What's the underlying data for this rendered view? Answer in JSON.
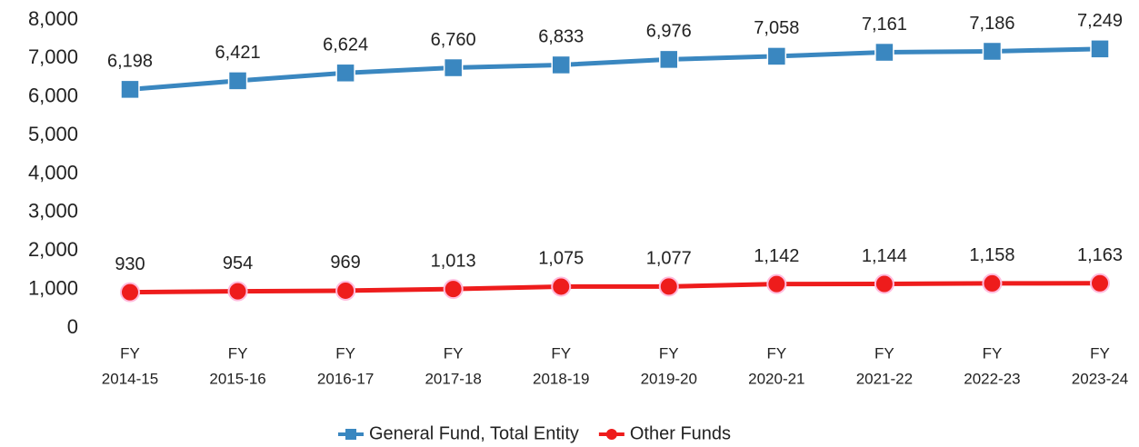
{
  "chart_data": {
    "type": "line",
    "categories": [
      [
        "FY",
        "2014-15"
      ],
      [
        "FY",
        "2015-16"
      ],
      [
        "FY",
        "2016-17"
      ],
      [
        "FY",
        "2017-18"
      ],
      [
        "FY",
        "2018-19"
      ],
      [
        "FY",
        "2019-20"
      ],
      [
        "FY",
        "2020-21"
      ],
      [
        "FY",
        "2021-22"
      ],
      [
        "FY",
        "2022-23"
      ],
      [
        "FY",
        "2023-24"
      ]
    ],
    "series": [
      {
        "name": "General Fund, Total Entity",
        "color": "#3a87c0",
        "marker": "square",
        "values": [
          6198,
          6421,
          6624,
          6760,
          6833,
          6976,
          7058,
          7161,
          7186,
          7249
        ],
        "value_labels": [
          "6,198",
          "6,421",
          "6,624",
          "6,760",
          "6,833",
          "6,976",
          "7,058",
          "7,161",
          "7,186",
          "7,249"
        ]
      },
      {
        "name": "Other Funds",
        "color": "#ee1c1c",
        "marker": "circle",
        "values": [
          930,
          954,
          969,
          1013,
          1075,
          1077,
          1142,
          1144,
          1158,
          1163
        ],
        "value_labels": [
          "930",
          "954",
          "969",
          "1,013",
          "1,075",
          "1,077",
          "1,142",
          "1,144",
          "1,158",
          "1,163"
        ]
      }
    ],
    "ylim": [
      0,
      8000
    ],
    "yticks": [
      0,
      {
        "value": 1000,
        "label": "1,000"
      },
      {
        "value": 2000,
        "label": "2,000"
      },
      {
        "value": 3000,
        "label": "3,000"
      },
      {
        "value": 4000,
        "label": "4,000"
      },
      {
        "value": 5000,
        "label": "5,000"
      },
      {
        "value": 6000,
        "label": "6,000"
      },
      {
        "value": 7000,
        "label": "7,000"
      },
      {
        "value": 8000,
        "label": "8,000"
      }
    ],
    "grid": false,
    "legend": "bottom"
  }
}
